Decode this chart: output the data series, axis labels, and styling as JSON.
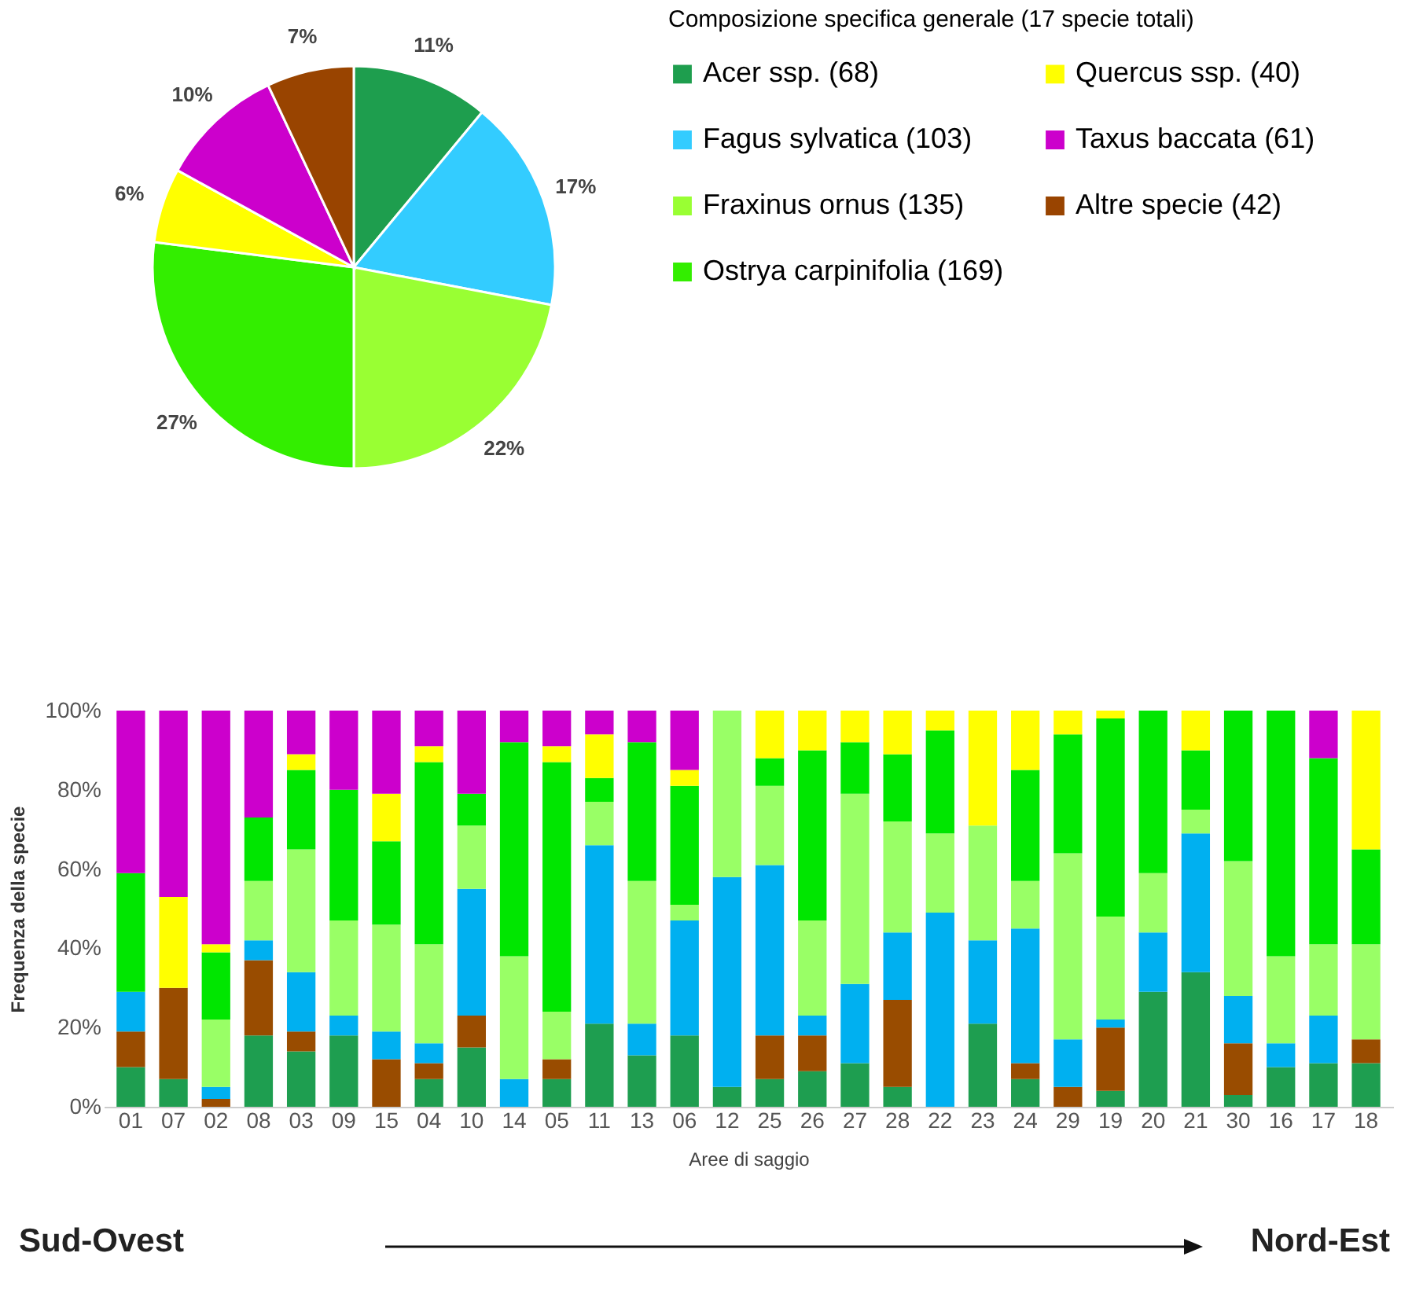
{
  "chart_data": [
    {
      "type": "pie",
      "legend_title": "Composizione specifica generale (17 specie totali)",
      "legend": "right",
      "categories": [
        "Acer ssp. (68)",
        "Fagus sylvatica (103)",
        "Fraxinus ornus (135)",
        "Ostrya carpinifolia (169)",
        "Quercus ssp. (40)",
        "Taxus baccata (61)",
        "Altre specie (42)"
      ],
      "values": [
        11,
        17,
        22,
        27,
        6,
        10,
        7
      ],
      "value_labels": [
        "11%",
        "17%",
        "22%",
        "27%",
        "6%",
        "10%",
        "7%"
      ],
      "colors": [
        "#1e9e4e",
        "#33ccff",
        "#99ff33",
        "#33ee00",
        "#ffff00",
        "#cc00cc",
        "#994400"
      ]
    },
    {
      "type": "bar",
      "stacked": true,
      "xlabel": "Aree di saggio",
      "ylabel": "Frequenza della specie",
      "legend": false,
      "grid": false,
      "categories": [
        "01",
        "07",
        "02",
        "08",
        "03",
        "09",
        "15",
        "04",
        "10",
        "14",
        "05",
        "11",
        "13",
        "06",
        "12",
        "25",
        "26",
        "27",
        "28",
        "22",
        "23",
        "24",
        "29",
        "19",
        "20",
        "21",
        "30",
        "16",
        "17",
        "18"
      ],
      "ylim": [
        0,
        100
      ],
      "yticks": [
        {
          "value": 0,
          "label": "0%"
        },
        {
          "value": 20,
          "label": "20%"
        },
        {
          "value": 40,
          "label": "40%"
        },
        {
          "value": 60,
          "label": "60%"
        },
        {
          "value": 80,
          "label": "80%"
        },
        {
          "value": 100,
          "label": "100%"
        }
      ],
      "series": [
        {
          "color": "#1e9e50",
          "values": [
            10,
            7,
            0,
            18,
            14,
            18,
            0,
            7,
            15,
            0,
            7,
            21,
            13,
            18,
            5,
            7,
            9,
            11,
            5,
            0,
            21,
            7,
            0,
            4,
            29,
            34,
            3,
            10,
            11,
            11
          ]
        },
        {
          "color": "#994c00",
          "values": [
            9,
            23,
            2,
            19,
            5,
            0,
            12,
            4,
            8,
            0,
            5,
            0,
            0,
            0,
            0,
            11,
            9,
            0,
            22,
            0,
            0,
            4,
            5,
            16,
            0,
            0,
            13,
            0,
            0,
            6
          ]
        },
        {
          "color": "#00b0f0",
          "values": [
            10,
            0,
            3,
            5,
            15,
            5,
            7,
            5,
            32,
            7,
            0,
            45,
            8,
            29,
            53,
            43,
            5,
            20,
            17,
            49,
            21,
            34,
            12,
            2,
            15,
            35,
            12,
            6,
            12,
            0
          ]
        },
        {
          "color": "#99ff66",
          "values": [
            0,
            0,
            17,
            15,
            31,
            24,
            27,
            25,
            16,
            31,
            12,
            11,
            36,
            4,
            42,
            20,
            24,
            48,
            28,
            20,
            29,
            12,
            47,
            26,
            15,
            6,
            34,
            22,
            18,
            24
          ]
        },
        {
          "color": "#00e600",
          "values": [
            30,
            0,
            17,
            16,
            20,
            33,
            21,
            46,
            8,
            54,
            63,
            6,
            35,
            30,
            0,
            7,
            43,
            13,
            17,
            26,
            0,
            28,
            30,
            50,
            41,
            15,
            38,
            62,
            47,
            24
          ]
        },
        {
          "color": "#ffff00",
          "values": [
            0,
            23,
            2,
            0,
            4,
            0,
            12,
            4,
            0,
            0,
            4,
            11,
            0,
            4,
            0,
            12,
            10,
            8,
            11,
            5,
            29,
            15,
            6,
            2,
            0,
            10,
            0,
            0,
            0,
            35
          ]
        },
        {
          "color": "#cc00cc",
          "values": [
            41,
            47,
            59,
            27,
            11,
            20,
            21,
            9,
            21,
            8,
            9,
            6,
            8,
            15,
            0,
            0,
            0,
            0,
            0,
            0,
            0,
            0,
            0,
            0,
            0,
            0,
            0,
            0,
            12,
            0
          ]
        }
      ],
      "annotations": [
        "Sud-Ovest",
        "Nord-Est"
      ]
    }
  ]
}
